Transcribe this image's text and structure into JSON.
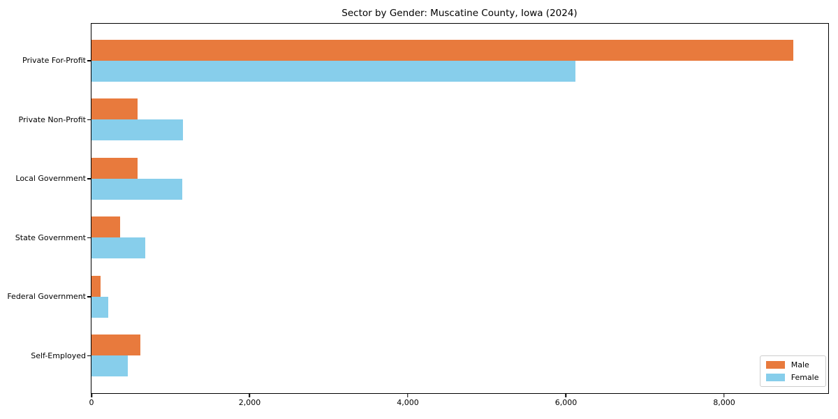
{
  "chart_data": {
    "type": "bar",
    "orientation": "horizontal",
    "title": "Sector by Gender: Muscatine County, Iowa (2024)",
    "categories": [
      "Private For-Profit",
      "Private Non-Profit",
      "Local Government",
      "State Government",
      "Federal Government",
      "Self-Employed"
    ],
    "series": [
      {
        "name": "Male",
        "color": "#E87A3D",
        "values": [
          8875,
          590,
          585,
          370,
          115,
          620
        ]
      },
      {
        "name": "Female",
        "color": "#87CEEB",
        "values": [
          6120,
          1165,
          1155,
          680,
          220,
          460
        ]
      }
    ],
    "xlim": [
      0,
      9307
    ],
    "xticks": [
      0,
      2000,
      4000,
      6000,
      8000
    ],
    "xtick_labels": [
      "0",
      "2,000",
      "4,000",
      "6,000",
      "8,000"
    ],
    "ylabel": "",
    "xlabel": "",
    "grid": false,
    "legend": {
      "position": "lower-right",
      "entries": [
        "Male",
        "Female"
      ]
    }
  },
  "colors": {
    "spine": "#000000",
    "background": "#FFFFFF",
    "legend_border": "#CCCCCC",
    "text": "#000000"
  }
}
